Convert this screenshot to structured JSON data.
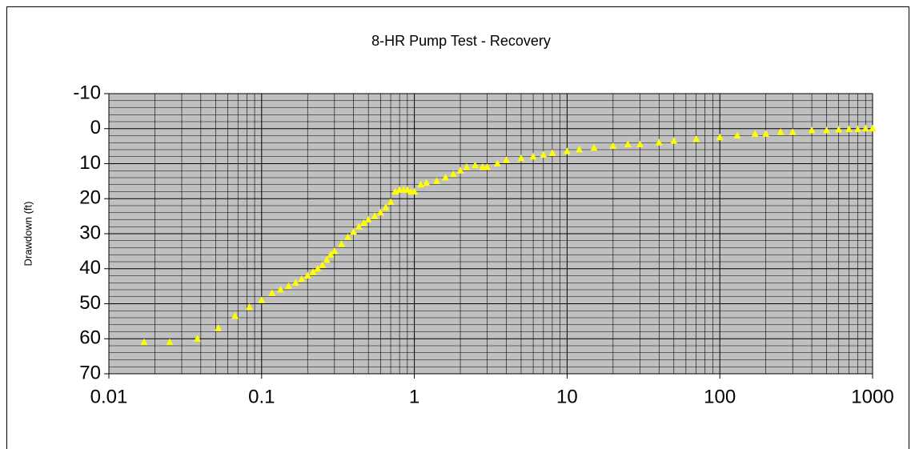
{
  "chart_data": {
    "type": "scatter",
    "title": "8-HR Pump Test - Recovery",
    "y_label": "Drawdown (ft)",
    "x": [
      0.017,
      0.025,
      0.038,
      0.052,
      0.067,
      0.083,
      0.1,
      0.117,
      0.133,
      0.15,
      0.167,
      0.183,
      0.2,
      0.217,
      0.233,
      0.25,
      0.267,
      0.283,
      0.3,
      0.333,
      0.367,
      0.4,
      0.433,
      0.467,
      0.5,
      0.55,
      0.6,
      0.65,
      0.7,
      0.75,
      0.8,
      0.85,
      0.9,
      0.95,
      1,
      1.1,
      1.2,
      1.4,
      1.6,
      1.8,
      2,
      2.2,
      2.5,
      2.8,
      3,
      3.5,
      4,
      5,
      6,
      7,
      8,
      10,
      12,
      15,
      20,
      25,
      30,
      40,
      50,
      70,
      100,
      130,
      170,
      200,
      250,
      300,
      400,
      500,
      600,
      700,
      800,
      900,
      1000
    ],
    "values": [
      61,
      61,
      60,
      57,
      53.5,
      51,
      49,
      47,
      46,
      45,
      44,
      43,
      42,
      41,
      40,
      39,
      37.5,
      36,
      35,
      33,
      31,
      29.5,
      28,
      27,
      26,
      25,
      24,
      22.5,
      21,
      18,
      17.5,
      17.5,
      17.5,
      18,
      18,
      16,
      15.5,
      15,
      14,
      13,
      12,
      11,
      10.5,
      11,
      11,
      10,
      9,
      8.5,
      8,
      7.5,
      7,
      6.5,
      6,
      5.5,
      5,
      4.5,
      4.5,
      4,
      3.5,
      3,
      2.5,
      2,
      1.5,
      1.5,
      1,
      1,
      0.5,
      0.5,
      0.3,
      0.2,
      0.2,
      0,
      0
    ],
    "color": "#ffff00",
    "xscale": "log",
    "xlim": [
      0.01,
      1000
    ],
    "xticks": [
      0.01,
      0.1,
      1,
      10,
      100,
      1000
    ],
    "ylim": [
      -10,
      70
    ],
    "yticks": [
      -10,
      0,
      10,
      20,
      30,
      40,
      50,
      60,
      70
    ],
    "y_inverted": true,
    "grid": true,
    "minor_grid": true
  }
}
